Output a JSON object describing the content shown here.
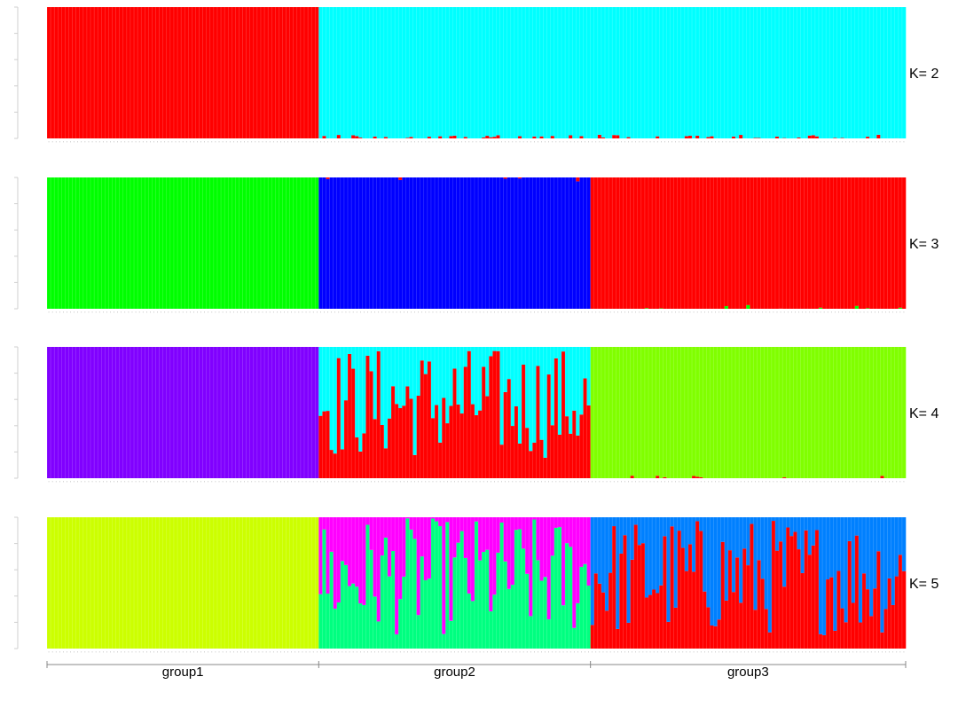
{
  "chart_data": {
    "type": "bar",
    "stacked": true,
    "y_range": [
      0,
      1
    ],
    "n_samples": 237,
    "panels": [
      {
        "label": "K= 2",
        "series": [
          {
            "color": "#ff0000"
          },
          {
            "color": "#00ffff"
          }
        ],
        "base_pattern": [
          [
            1,
            0
          ],
          [
            0,
            1
          ],
          [
            0,
            1
          ]
        ],
        "minor_pattern_note": "group2 and group3 bars are almost entirely cyan with a small red fraction near the baseline in some samples"
      },
      {
        "label": "K= 3",
        "series": [
          {
            "color": "#00ff00"
          },
          {
            "color": "#0000ff"
          },
          {
            "color": "#ff0000"
          }
        ],
        "base_pattern": [
          [
            1,
            0,
            0
          ],
          [
            0,
            1,
            0
          ],
          [
            0,
            0,
            1
          ]
        ]
      },
      {
        "label": "K= 4",
        "series": [
          {
            "color": "#8000ff"
          },
          {
            "color": "#ff0000"
          },
          {
            "color": "#00ffff"
          },
          {
            "color": "#80ff00"
          }
        ],
        "base_pattern": [
          [
            1,
            0,
            0,
            0
          ],
          [
            0,
            0.5,
            0.5,
            0
          ],
          [
            0,
            0,
            0,
            1
          ]
        ]
      },
      {
        "label": "K= 5",
        "series": [
          {
            "color": "#ccff00"
          },
          {
            "color": "#00ff80"
          },
          {
            "color": "#ff00ff"
          },
          {
            "color": "#ff0000"
          },
          {
            "color": "#0080ff"
          }
        ],
        "base_pattern": [
          [
            1,
            0,
            0,
            0,
            0
          ],
          [
            0,
            0.55,
            0.45,
            0,
            0
          ],
          [
            0,
            0,
            0,
            0.55,
            0.45
          ]
        ]
      }
    ],
    "groups": [
      {
        "name": "group1",
        "count": 75
      },
      {
        "name": "group2",
        "count": 75
      },
      {
        "name": "group3",
        "count": 87
      }
    ]
  }
}
